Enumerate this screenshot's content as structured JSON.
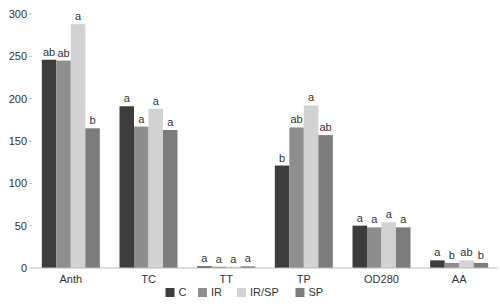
{
  "chart_data": {
    "type": "bar",
    "categories": [
      "Anth",
      "TC",
      "TT",
      "TP",
      "OD280",
      "AA"
    ],
    "series": [
      {
        "name": "C",
        "color": "#3c3c3c",
        "values": [
          246,
          191,
          2,
          121,
          50,
          9
        ],
        "annotations": [
          "ab",
          "a",
          "a",
          "b",
          "a",
          "a"
        ]
      },
      {
        "name": "IR",
        "color": "#8e8e8e",
        "values": [
          245,
          167,
          1.5,
          166,
          48,
          6
        ],
        "annotations": [
          "ab",
          "a",
          "a",
          "ab",
          "a",
          "b"
        ]
      },
      {
        "name": "IR/SP",
        "color": "#d2d2d2",
        "values": [
          288,
          188,
          1.5,
          192,
          54,
          9
        ],
        "annotations": [
          "a",
          "a",
          "a",
          "a",
          "a",
          "ab"
        ]
      },
      {
        "name": "SP",
        "color": "#7c7c7c",
        "values": [
          165,
          163,
          2,
          157,
          48,
          6
        ],
        "annotations": [
          "b",
          "a",
          "a",
          "ab",
          "a",
          "b"
        ]
      }
    ],
    "ylim": [
      0,
      300
    ],
    "yticks": [
      0,
      50,
      100,
      150,
      200,
      250,
      300
    ],
    "grid": false,
    "legend": "bottom"
  }
}
